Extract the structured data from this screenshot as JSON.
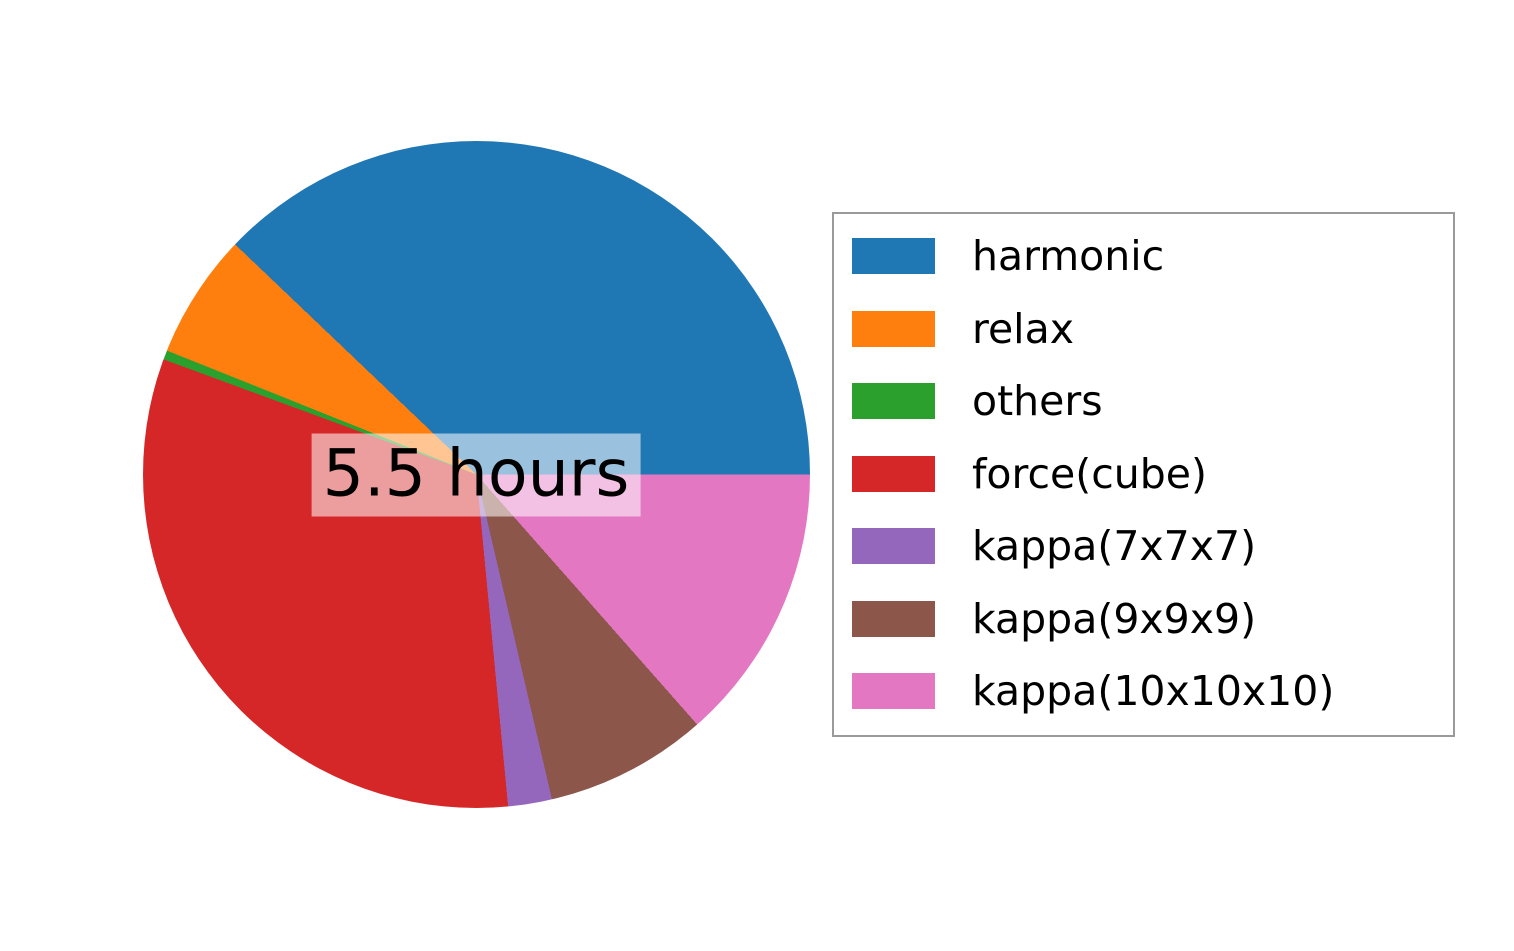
{
  "chart_data": {
    "type": "pie",
    "title": "",
    "center_annotation": "5.5 hours",
    "total_label": "5.5 hours",
    "start_angle_deg": 0,
    "direction": "counterclockwise",
    "legend_position": "right",
    "background_color": "#ffffff",
    "legend_border_color": "#9a9a9a",
    "center_label_bg": "rgba(255,255,255,0.55)",
    "slices": [
      {
        "label": "harmonic",
        "color": "#1f77b4",
        "fraction": 0.3788,
        "est_angle_deg": 136.4
      },
      {
        "label": "relax",
        "color": "#ff7f0e",
        "fraction": 0.0606,
        "est_angle_deg": 21.8
      },
      {
        "label": "others",
        "color": "#2ca02c",
        "fraction": 0.0045,
        "est_angle_deg": 1.6
      },
      {
        "label": "force(cube)",
        "color": "#d62728",
        "fraction": 0.3212,
        "est_angle_deg": 115.6
      },
      {
        "label": "kappa(7x7x7)",
        "color": "#9467bd",
        "fraction": 0.0212,
        "est_angle_deg": 7.6
      },
      {
        "label": "kappa(9x9x9)",
        "color": "#8c564b",
        "fraction": 0.0788,
        "est_angle_deg": 28.4
      },
      {
        "label": "kappa(10x10x10)",
        "color": "#e377c2",
        "fraction": 0.1349,
        "est_angle_deg": 48.6
      }
    ]
  }
}
